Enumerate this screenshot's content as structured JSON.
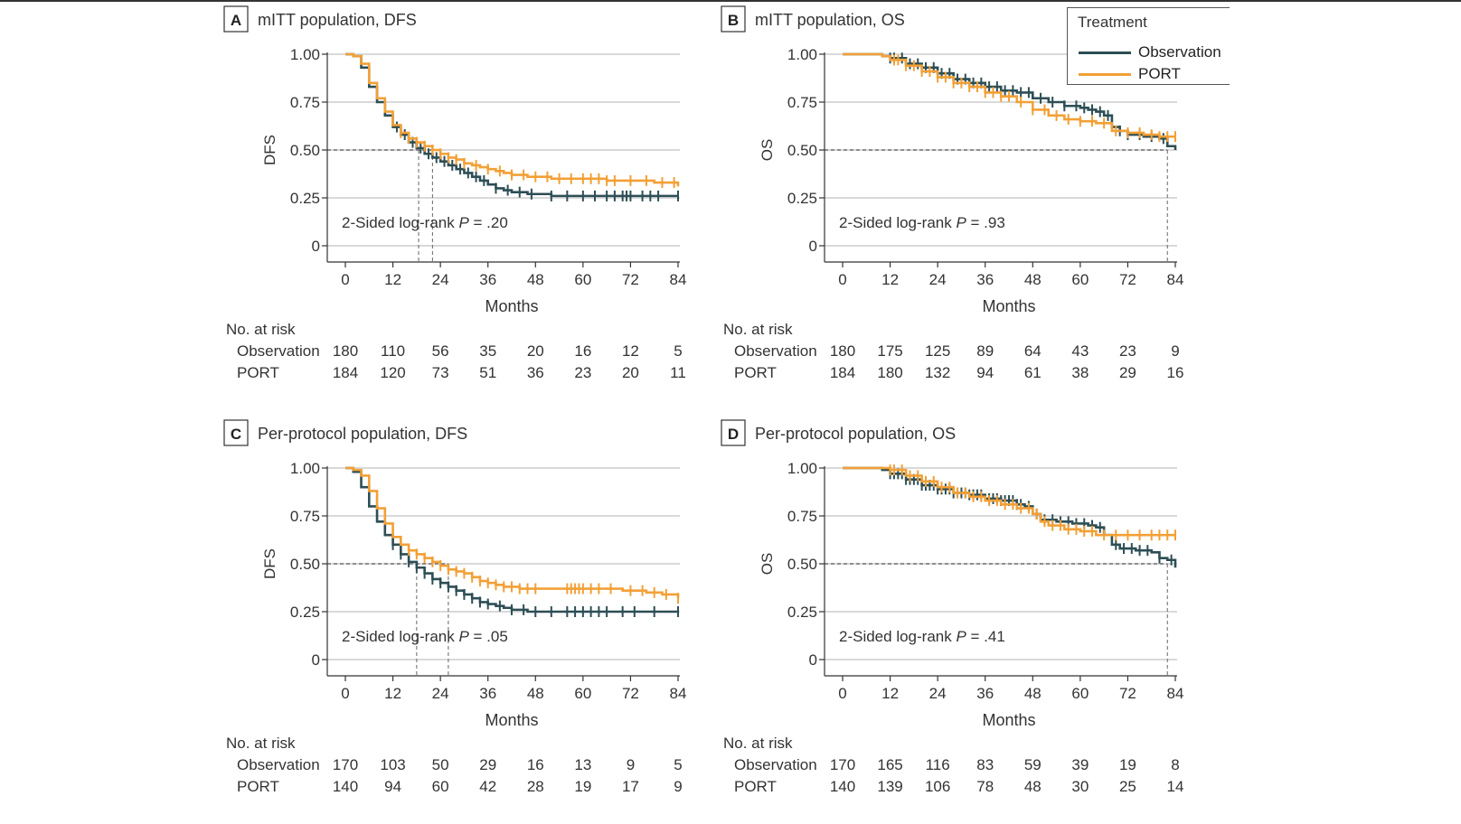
{
  "colors": {
    "observation": "#2d4e55",
    "port": "#f2a036"
  },
  "legend": {
    "title": "Treatment",
    "observation": "Observation",
    "port": "PORT"
  },
  "chart_data": [
    {
      "type": "line",
      "panel": "A",
      "title": "mITT population, DFS",
      "xlabel": "Months",
      "ylabel": "DFS",
      "xlim": [
        0,
        84
      ],
      "ylim": [
        0,
        1
      ],
      "xticks": [
        "0",
        "12",
        "24",
        "36",
        "48",
        "60",
        "72",
        "84"
      ],
      "yticks": [
        "0",
        "0.25",
        "0.50",
        "0.75",
        "1.00"
      ],
      "annotation": {
        "prefix": "2-Sided log-rank ",
        "p": "P",
        "value": " = .20"
      },
      "median_lines": [
        18.5,
        22.0
      ],
      "series": [
        {
          "name": "Observation",
          "color_key": "observation",
          "x": [
            0,
            2,
            4,
            6,
            8,
            10,
            12,
            14,
            16,
            18,
            20,
            22,
            24,
            26,
            28,
            30,
            32,
            34,
            36,
            38,
            40,
            42,
            44,
            46,
            48,
            52,
            60,
            72,
            84
          ],
          "y": [
            1.0,
            0.99,
            0.93,
            0.83,
            0.75,
            0.68,
            0.62,
            0.58,
            0.54,
            0.51,
            0.48,
            0.46,
            0.44,
            0.42,
            0.4,
            0.38,
            0.36,
            0.34,
            0.32,
            0.3,
            0.29,
            0.28,
            0.28,
            0.27,
            0.27,
            0.26,
            0.26,
            0.26,
            0.26
          ],
          "censor": [
            13,
            15,
            17,
            19,
            21,
            23,
            25,
            27,
            29,
            31,
            33,
            35,
            38,
            41,
            44,
            47,
            52,
            56,
            60,
            63,
            66,
            68,
            70,
            71,
            72,
            75,
            77,
            79,
            84
          ]
        },
        {
          "name": "PORT",
          "color_key": "port",
          "x": [
            0,
            2,
            4,
            6,
            8,
            10,
            12,
            14,
            16,
            18,
            20,
            22,
            24,
            26,
            28,
            30,
            32,
            34,
            36,
            38,
            40,
            42,
            44,
            46,
            48,
            52,
            56,
            60,
            66,
            72,
            78,
            84
          ],
          "y": [
            1.0,
            0.99,
            0.95,
            0.85,
            0.77,
            0.7,
            0.63,
            0.59,
            0.56,
            0.54,
            0.52,
            0.5,
            0.48,
            0.46,
            0.45,
            0.43,
            0.42,
            0.41,
            0.4,
            0.39,
            0.38,
            0.37,
            0.37,
            0.36,
            0.36,
            0.35,
            0.35,
            0.35,
            0.34,
            0.34,
            0.33,
            0.31
          ],
          "censor": [
            14,
            16,
            18,
            20,
            22,
            24,
            26,
            28,
            30,
            33,
            36,
            39,
            42,
            45,
            48,
            51,
            54,
            57,
            60,
            62,
            64,
            66,
            68,
            72,
            76,
            80,
            83
          ]
        }
      ],
      "risk_table": {
        "header": "No. at risk",
        "rows": [
          {
            "label": "Observation",
            "values": [
              "180",
              "110",
              "56",
              "35",
              "20",
              "16",
              "12",
              "5"
            ]
          },
          {
            "label": "PORT",
            "values": [
              "184",
              "120",
              "73",
              "51",
              "36",
              "23",
              "20",
              "11"
            ]
          }
        ]
      }
    },
    {
      "type": "line",
      "panel": "B",
      "title": "mITT population, OS",
      "xlabel": "Months",
      "ylabel": "OS",
      "xlim": [
        0,
        84
      ],
      "ylim": [
        0,
        1
      ],
      "xticks": [
        "0",
        "12",
        "24",
        "36",
        "48",
        "60",
        "72",
        "84"
      ],
      "yticks": [
        "0",
        "0.25",
        "0.50",
        "0.75",
        "1.00"
      ],
      "annotation": {
        "prefix": "2-Sided log-rank ",
        "p": "P",
        "value": " = .93"
      },
      "median_lines": [
        82.0
      ],
      "series": [
        {
          "name": "Observation",
          "color_key": "observation",
          "x": [
            0,
            6,
            10,
            12,
            16,
            20,
            24,
            28,
            32,
            36,
            40,
            44,
            48,
            52,
            56,
            60,
            62,
            64,
            66,
            68,
            70,
            72,
            76,
            80,
            82,
            84
          ],
          "y": [
            1.0,
            1.0,
            0.99,
            0.98,
            0.95,
            0.93,
            0.9,
            0.87,
            0.85,
            0.83,
            0.81,
            0.8,
            0.77,
            0.75,
            0.73,
            0.72,
            0.71,
            0.7,
            0.68,
            0.62,
            0.6,
            0.58,
            0.57,
            0.56,
            0.52,
            0.5
          ],
          "censor": [
            12,
            13,
            15,
            17,
            19,
            21,
            23,
            25,
            27,
            29,
            31,
            33,
            35,
            37,
            39,
            41,
            43,
            45,
            47,
            50,
            53,
            56,
            59,
            61,
            63,
            65,
            67,
            70,
            72,
            75,
            78,
            81
          ]
        },
        {
          "name": "PORT",
          "color_key": "port",
          "x": [
            0,
            6,
            10,
            12,
            16,
            20,
            24,
            28,
            32,
            36,
            40,
            44,
            48,
            52,
            56,
            60,
            64,
            68,
            72,
            76,
            80,
            84
          ],
          "y": [
            1.0,
            1.0,
            0.99,
            0.97,
            0.94,
            0.91,
            0.88,
            0.85,
            0.83,
            0.8,
            0.78,
            0.75,
            0.71,
            0.68,
            0.66,
            0.65,
            0.64,
            0.6,
            0.59,
            0.58,
            0.57,
            0.57
          ],
          "censor": [
            13,
            14,
            16,
            18,
            20,
            22,
            24,
            26,
            28,
            30,
            32,
            34,
            36,
            38,
            40,
            42,
            45,
            48,
            51,
            54,
            57,
            60,
            63,
            66,
            69,
            72,
            75,
            78,
            80,
            82,
            84
          ]
        }
      ],
      "risk_table": {
        "header": "No. at risk",
        "rows": [
          {
            "label": "Observation",
            "values": [
              "180",
              "175",
              "125",
              "89",
              "64",
              "43",
              "23",
              "9"
            ]
          },
          {
            "label": "PORT",
            "values": [
              "184",
              "180",
              "132",
              "94",
              "61",
              "38",
              "29",
              "16"
            ]
          }
        ]
      }
    },
    {
      "type": "line",
      "panel": "C",
      "title": "Per-protocol population, DFS",
      "xlabel": "Months",
      "ylabel": "DFS",
      "xlim": [
        0,
        84
      ],
      "ylim": [
        0,
        1
      ],
      "xticks": [
        "0",
        "12",
        "24",
        "36",
        "48",
        "60",
        "72",
        "84"
      ],
      "yticks": [
        "0",
        "0.25",
        "0.50",
        "0.75",
        "1.00"
      ],
      "annotation": {
        "prefix": "2-Sided log-rank ",
        "p": "P",
        "value": " = .05"
      },
      "median_lines": [
        18.0,
        26.0
      ],
      "series": [
        {
          "name": "Observation",
          "color_key": "observation",
          "x": [
            0,
            2,
            4,
            6,
            8,
            10,
            12,
            14,
            16,
            18,
            20,
            22,
            24,
            26,
            28,
            30,
            32,
            34,
            36,
            38,
            40,
            42,
            44,
            46,
            48,
            60,
            72,
            84
          ],
          "y": [
            1.0,
            0.98,
            0.9,
            0.8,
            0.72,
            0.65,
            0.6,
            0.55,
            0.51,
            0.48,
            0.45,
            0.42,
            0.4,
            0.38,
            0.36,
            0.34,
            0.32,
            0.3,
            0.29,
            0.28,
            0.27,
            0.26,
            0.26,
            0.25,
            0.25,
            0.25,
            0.25,
            0.25
          ],
          "censor": [
            12,
            14,
            16,
            18,
            20,
            22,
            24,
            26,
            28,
            30,
            32,
            34,
            36,
            39,
            42,
            45,
            48,
            52,
            56,
            58,
            60,
            62,
            64,
            66,
            70,
            73,
            78,
            84
          ]
        },
        {
          "name": "PORT",
          "color_key": "port",
          "x": [
            0,
            2,
            4,
            6,
            8,
            10,
            12,
            14,
            16,
            18,
            20,
            22,
            24,
            26,
            28,
            30,
            32,
            34,
            36,
            38,
            40,
            42,
            44,
            46,
            48,
            60,
            70,
            76,
            80,
            84
          ],
          "y": [
            1.0,
            0.99,
            0.96,
            0.88,
            0.79,
            0.71,
            0.64,
            0.6,
            0.57,
            0.55,
            0.53,
            0.51,
            0.49,
            0.47,
            0.46,
            0.45,
            0.43,
            0.41,
            0.4,
            0.39,
            0.38,
            0.38,
            0.37,
            0.37,
            0.37,
            0.37,
            0.36,
            0.35,
            0.34,
            0.32
          ],
          "censor": [
            16,
            18,
            20,
            22,
            24,
            26,
            28,
            30,
            32,
            34,
            36,
            38,
            40,
            42,
            44,
            46,
            48,
            56,
            57,
            58,
            59,
            60,
            62,
            64,
            67,
            72,
            75,
            78,
            81,
            84
          ]
        }
      ],
      "risk_table": {
        "header": "No. at risk",
        "rows": [
          {
            "label": "Observation",
            "values": [
              "170",
              "103",
              "50",
              "29",
              "16",
              "13",
              "9",
              "5"
            ]
          },
          {
            "label": "PORT",
            "values": [
              "140",
              "94",
              "60",
              "42",
              "28",
              "19",
              "17",
              "9"
            ]
          }
        ]
      }
    },
    {
      "type": "line",
      "panel": "D",
      "title": "Per-protocol population, OS",
      "xlabel": "Months",
      "ylabel": "OS",
      "xlim": [
        0,
        84
      ],
      "ylim": [
        0,
        1
      ],
      "xticks": [
        "0",
        "12",
        "24",
        "36",
        "48",
        "60",
        "72",
        "84"
      ],
      "yticks": [
        "0",
        "0.25",
        "0.50",
        "0.75",
        "1.00"
      ],
      "annotation": {
        "prefix": "2-Sided log-rank ",
        "p": "P",
        "value": " = .41"
      },
      "median_lines": [
        82.0
      ],
      "series": [
        {
          "name": "Observation",
          "color_key": "observation",
          "x": [
            0,
            6,
            10,
            12,
            16,
            20,
            24,
            28,
            32,
            36,
            40,
            44,
            46,
            48,
            50,
            54,
            58,
            62,
            64,
            66,
            68,
            70,
            74,
            78,
            80,
            82,
            84
          ],
          "y": [
            1.0,
            1.0,
            0.99,
            0.97,
            0.94,
            0.91,
            0.89,
            0.87,
            0.86,
            0.84,
            0.83,
            0.81,
            0.8,
            0.76,
            0.73,
            0.72,
            0.71,
            0.7,
            0.69,
            0.65,
            0.6,
            0.58,
            0.57,
            0.56,
            0.53,
            0.52,
            0.48
          ],
          "censor": [
            12,
            13,
            14,
            15,
            16,
            17,
            18,
            19,
            20,
            21,
            22,
            23,
            24,
            25,
            26,
            27,
            28,
            29,
            30,
            31,
            32,
            33,
            34,
            35,
            37,
            38,
            39,
            40,
            41,
            42,
            43,
            44,
            45,
            47,
            49,
            51,
            53,
            55,
            57,
            59,
            61,
            63,
            65,
            69,
            71,
            73,
            75,
            77,
            80,
            83
          ]
        },
        {
          "name": "PORT",
          "color_key": "port",
          "x": [
            0,
            6,
            10,
            12,
            16,
            20,
            24,
            28,
            32,
            36,
            40,
            44,
            48,
            50,
            52,
            56,
            60,
            64,
            84
          ],
          "y": [
            1.0,
            1.0,
            1.0,
            0.99,
            0.96,
            0.93,
            0.9,
            0.87,
            0.85,
            0.83,
            0.81,
            0.79,
            0.76,
            0.72,
            0.7,
            0.68,
            0.67,
            0.65,
            0.65
          ],
          "censor": [
            12,
            13,
            15,
            17,
            19,
            21,
            23,
            25,
            27,
            29,
            31,
            33,
            35,
            37,
            39,
            41,
            43,
            45,
            47,
            49,
            51,
            53,
            55,
            57,
            59,
            61,
            63,
            66,
            69,
            72,
            75,
            78,
            80,
            82,
            84
          ]
        }
      ],
      "risk_table": {
        "header": "No. at risk",
        "rows": [
          {
            "label": "Observation",
            "values": [
              "170",
              "165",
              "116",
              "83",
              "59",
              "39",
              "19",
              "8"
            ]
          },
          {
            "label": "PORT",
            "values": [
              "140",
              "139",
              "106",
              "78",
              "48",
              "30",
              "25",
              "14"
            ]
          }
        ]
      }
    }
  ]
}
